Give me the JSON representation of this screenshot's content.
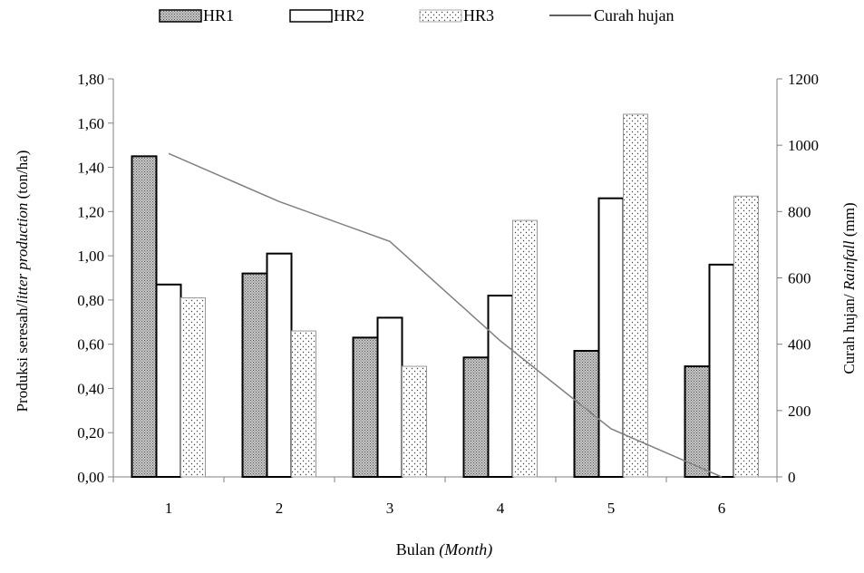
{
  "chart_data": {
    "type": "bar",
    "categories": [
      "1",
      "2",
      "3",
      "4",
      "5",
      "6"
    ],
    "series": [
      {
        "name": "HR1",
        "type": "bar",
        "axis": "left",
        "pattern": "dense-gray",
        "values": [
          1.45,
          0.92,
          0.63,
          0.54,
          0.57,
          0.5
        ]
      },
      {
        "name": "HR2",
        "type": "bar",
        "axis": "left",
        "pattern": "white",
        "values": [
          0.87,
          1.01,
          0.72,
          0.82,
          1.26,
          0.96
        ]
      },
      {
        "name": "HR3",
        "type": "bar",
        "axis": "left",
        "pattern": "dots",
        "values": [
          0.81,
          0.66,
          0.5,
          1.16,
          1.64,
          1.27
        ]
      },
      {
        "name": "Curah hujan",
        "type": "line",
        "axis": "right",
        "color": "#808080",
        "values": [
          975,
          830,
          710,
          410,
          145,
          0
        ]
      }
    ],
    "xlabel": {
      "main": "Bulan ",
      "italic": "(Month)"
    },
    "ylabel_left": {
      "main": "Produksi seresah/",
      "italic": "litter production",
      "tail": " (ton/ha)"
    },
    "ylabel_right": {
      "main": "Curah hujan/ ",
      "italic": "Rainfall",
      "tail": " (mm)"
    },
    "ylim_left": [
      0,
      1.8
    ],
    "ylim_right": [
      0,
      1200
    ],
    "yticks_left": [
      "0,00",
      "0,20",
      "0,40",
      "0,60",
      "0,80",
      "1,00",
      "1,20",
      "1,40",
      "1,60",
      "1,80"
    ],
    "yticks_right": [
      "0",
      "200",
      "400",
      "600",
      "800",
      "1000",
      "1200"
    ],
    "legend_position": "top",
    "grid": false
  }
}
